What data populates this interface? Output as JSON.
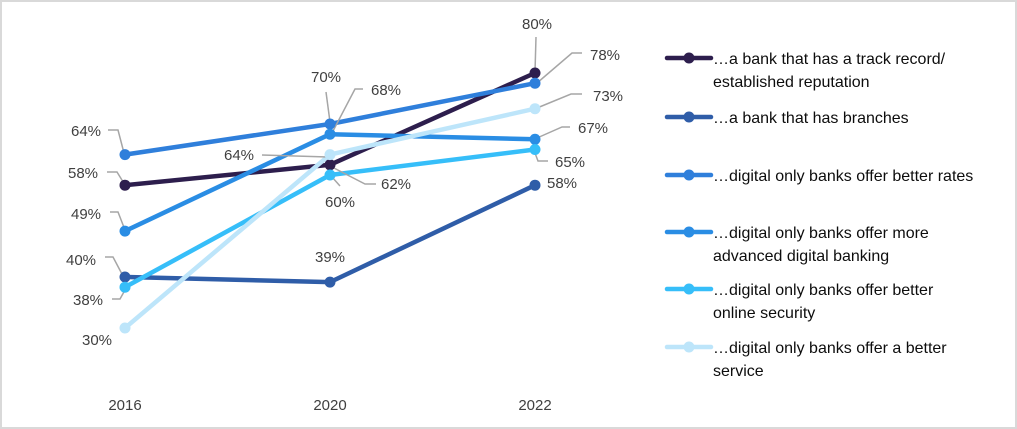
{
  "chart_data": {
    "type": "line",
    "title": "",
    "xlabel": "",
    "ylabel": "",
    "grid": false,
    "y_axis_visible": false,
    "legend_position": "right",
    "categories": [
      "2016",
      "2020",
      "2022"
    ],
    "series": [
      {
        "name": "…a bank that has a track record/ established reputation",
        "legend_lines": [
          "…a bank that has a track record/",
          "established reputation"
        ],
        "values": [
          58,
          62,
          80
        ],
        "labels": [
          "58%",
          "62%",
          "80%"
        ],
        "color": "#2D1E4D"
      },
      {
        "name": "…a bank that has branches",
        "legend_lines": [
          "…a bank that has branches"
        ],
        "values": [
          40,
          39,
          58
        ],
        "labels": [
          "40%",
          "39%",
          "58%"
        ],
        "color": "#2F5DA8"
      },
      {
        "name": "…digital only banks offer better rates",
        "legend_lines": [
          "…digital only banks offer better rates"
        ],
        "values": [
          64,
          70,
          78
        ],
        "labels": [
          "64%",
          "70%",
          "78%"
        ],
        "color": "#2F7FDB"
      },
      {
        "name": "…digital only banks offer more advanced digital banking",
        "legend_lines": [
          "…digital only banks offer more",
          "advanced digital banking"
        ],
        "values": [
          49,
          68,
          67
        ],
        "labels": [
          "49%",
          "68%",
          "67%"
        ],
        "color": "#2A8DE4"
      },
      {
        "name": "…digital only banks offer better online security",
        "legend_lines": [
          "…digital only banks offer better",
          "online security"
        ],
        "values": [
          38,
          60,
          65
        ],
        "labels": [
          "38%",
          "60%",
          "65%"
        ],
        "color": "#36BEF9"
      },
      {
        "name": "…digital only banks offer a better service",
        "legend_lines": [
          "…digital only banks offer a better",
          "service"
        ],
        "values": [
          30,
          64,
          73
        ],
        "labels": [
          "30%",
          "64%",
          "73%"
        ],
        "color": "#BDE5FA"
      }
    ]
  }
}
